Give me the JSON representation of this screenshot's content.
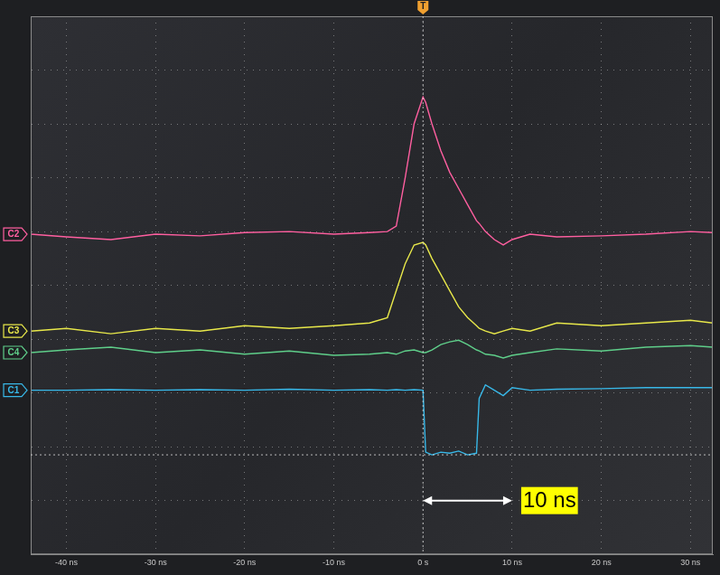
{
  "chart_data": {
    "type": "line",
    "x": [
      -44,
      -40,
      -35,
      -30,
      -25,
      -20,
      -15,
      -10,
      -6,
      -4,
      -3,
      -2,
      -1,
      0,
      0.3,
      1,
      2,
      3,
      4,
      5,
      6,
      6.3,
      7,
      8,
      9,
      10,
      12,
      15,
      20,
      25,
      30,
      32.5
    ],
    "series": [
      {
        "name": "C2",
        "color": "#ff5fa0",
        "values": [
          5.95,
          5.9,
          5.85,
          5.95,
          5.92,
          5.98,
          6.0,
          5.95,
          5.98,
          6.0,
          6.1,
          7.0,
          8.0,
          8.5,
          8.4,
          8.0,
          7.5,
          7.1,
          6.8,
          6.5,
          6.2,
          6.15,
          6.0,
          5.85,
          5.75,
          5.85,
          5.95,
          5.9,
          5.92,
          5.95,
          6.0,
          5.98
        ]
      },
      {
        "name": "C3",
        "color": "#e8e84a",
        "values": [
          4.15,
          4.2,
          4.1,
          4.2,
          4.15,
          4.25,
          4.2,
          4.25,
          4.3,
          4.4,
          4.9,
          5.4,
          5.75,
          5.8,
          5.75,
          5.5,
          5.2,
          4.9,
          4.6,
          4.4,
          4.25,
          4.2,
          4.15,
          4.1,
          4.15,
          4.2,
          4.15,
          4.3,
          4.25,
          4.3,
          4.35,
          4.3
        ]
      },
      {
        "name": "C4",
        "color": "#5fcf8a",
        "values": [
          3.75,
          3.8,
          3.85,
          3.75,
          3.8,
          3.72,
          3.78,
          3.7,
          3.72,
          3.75,
          3.72,
          3.78,
          3.8,
          3.75,
          3.75,
          3.8,
          3.9,
          3.95,
          3.98,
          3.9,
          3.8,
          3.78,
          3.72,
          3.7,
          3.65,
          3.7,
          3.75,
          3.82,
          3.78,
          3.85,
          3.88,
          3.85
        ]
      },
      {
        "name": "C1",
        "color": "#38b8e8",
        "values": [
          3.05,
          3.05,
          3.06,
          3.05,
          3.06,
          3.05,
          3.07,
          3.05,
          3.06,
          3.05,
          3.06,
          3.05,
          3.06,
          3.05,
          1.9,
          1.85,
          1.9,
          1.88,
          1.92,
          1.85,
          1.88,
          2.9,
          3.15,
          3.05,
          2.95,
          3.1,
          3.05,
          3.07,
          3.08,
          3.1,
          3.1,
          3.1
        ]
      }
    ],
    "xlim": [
      -44,
      32.5
    ],
    "xticks": [
      {
        "value": -40,
        "label": "-40 ns"
      },
      {
        "value": -30,
        "label": "-30 ns"
      },
      {
        "value": -20,
        "label": "-20 ns"
      },
      {
        "value": -10,
        "label": "-10 ns"
      },
      {
        "value": 0,
        "label": "0 s"
      },
      {
        "value": 10,
        "label": "10 ns"
      },
      {
        "value": 20,
        "label": "20 ns"
      },
      {
        "value": 30,
        "label": "30 ns"
      }
    ],
    "ylim": [
      0,
      10
    ],
    "yticks": [
      0,
      1,
      2,
      3,
      4,
      5,
      6,
      7,
      8,
      9,
      10
    ],
    "grid": true,
    "tick_labels": "x",
    "trigger": {
      "label": "T",
      "x": 0,
      "y": 1.85
    },
    "annotations": [
      {
        "text": "10 ns",
        "x_start": 0,
        "x_end": 10,
        "y": 1
      }
    ]
  }
}
